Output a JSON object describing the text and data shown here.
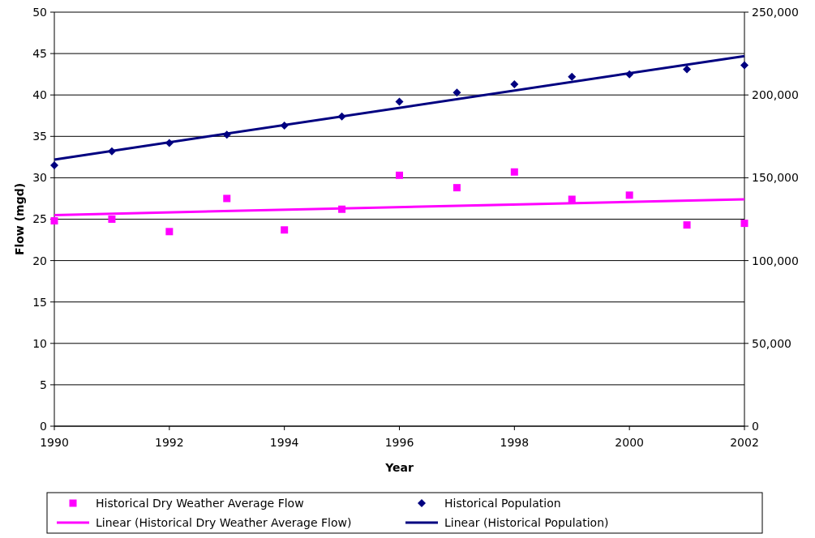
{
  "chart_data": {
    "type": "scatter",
    "xlabel": "Year",
    "ylabel": "Flow (mgd)",
    "xlim": [
      1990,
      2002
    ],
    "xticks": [
      1990,
      1992,
      1994,
      1996,
      1998,
      2000,
      2002
    ],
    "ylim": [
      0,
      50
    ],
    "yticks": [
      0,
      5,
      10,
      15,
      20,
      25,
      30,
      35,
      40,
      45,
      50
    ],
    "y2lim": [
      0,
      250000
    ],
    "y2ticks": [
      {
        "value": 0,
        "label": "0"
      },
      {
        "value": 50000,
        "label": "50,000"
      },
      {
        "value": 100000,
        "label": "100,000"
      },
      {
        "value": 150000,
        "label": "150,000"
      },
      {
        "value": 200000,
        "label": "200,000"
      },
      {
        "value": 250000,
        "label": "250,000"
      }
    ],
    "grid": "y",
    "legend": "bottom",
    "series": [
      {
        "name": "Historical Dry Weather Average Flow",
        "marker": "square",
        "color": "#ff00ff",
        "x": [
          1990,
          1991,
          1992,
          1993,
          1994,
          1995,
          1996,
          1997,
          1998,
          1999,
          2000,
          2001,
          2002
        ],
        "values": [
          24.8,
          25.0,
          23.5,
          27.5,
          23.7,
          26.2,
          30.3,
          28.8,
          30.7,
          27.4,
          27.9,
          24.3,
          24.5
        ]
      },
      {
        "name": "Historical Population",
        "marker": "diamond",
        "color": "#000080",
        "axis": "y2",
        "x": [
          1990,
          1991,
          1992,
          1993,
          1994,
          1995,
          1996,
          1997,
          1998,
          1999,
          2000,
          2001,
          2002
        ],
        "values": [
          157500,
          166000,
          171000,
          176000,
          181500,
          187000,
          196000,
          201500,
          206500,
          211000,
          212500,
          215500,
          218000
        ]
      },
      {
        "name": "Linear (Historical Dry Weather Average Flow)",
        "type": "line",
        "color": "#ff00ff",
        "x": [
          1990,
          2002
        ],
        "values": [
          25.5,
          27.4
        ]
      },
      {
        "name": "Linear (Historical Population)",
        "type": "line",
        "color": "#000080",
        "axis": "y2",
        "x": [
          1990,
          2002
        ],
        "values": [
          161000,
          223500
        ]
      }
    ]
  }
}
